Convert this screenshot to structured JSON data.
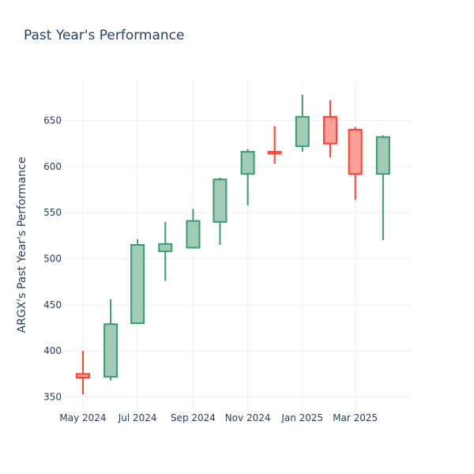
{
  "chart_data": {
    "type": "candlestick",
    "title": "Past Year's Performance",
    "xlabel": "",
    "ylabel": "ARGX's Past Year's Performance",
    "ylim": [
      335,
      695
    ],
    "yticks": [
      350,
      400,
      450,
      500,
      550,
      600,
      650
    ],
    "xticks": [
      {
        "date": "2024-05-01",
        "label": "May 2024"
      },
      {
        "date": "2024-07-01",
        "label": "Jul 2024"
      },
      {
        "date": "2024-09-01",
        "label": "Sep 2024"
      },
      {
        "date": "2024-11-01",
        "label": "Nov 2024"
      },
      {
        "date": "2025-01-01",
        "label": "Jan 2025"
      },
      {
        "date": "2025-03-01",
        "label": "Mar 2025"
      }
    ],
    "grid": true,
    "colors": {
      "increasing": "#3d9970",
      "increasing_fill": "#9fcbb7",
      "decreasing": "#ff4136",
      "decreasing_fill": "#ff9f9a"
    },
    "candles": [
      {
        "date": "2024-05-01",
        "open": 375,
        "high": 400,
        "low": 353,
        "close": 371
      },
      {
        "date": "2024-06-01",
        "open": 372,
        "high": 456,
        "low": 368,
        "close": 429
      },
      {
        "date": "2024-07-01",
        "open": 430,
        "high": 521,
        "low": 429,
        "close": 515
      },
      {
        "date": "2024-08-01",
        "open": 508,
        "high": 540,
        "low": 476,
        "close": 516
      },
      {
        "date": "2024-09-01",
        "open": 512,
        "high": 554,
        "low": 511,
        "close": 541
      },
      {
        "date": "2024-10-01",
        "open": 540,
        "high": 588,
        "low": 515,
        "close": 586
      },
      {
        "date": "2024-11-01",
        "open": 592,
        "high": 619,
        "low": 558,
        "close": 616
      },
      {
        "date": "2024-12-01",
        "open": 616,
        "high": 644,
        "low": 603,
        "close": 614
      },
      {
        "date": "2025-01-01",
        "open": 622,
        "high": 678,
        "low": 616,
        "close": 654
      },
      {
        "date": "2025-02-01",
        "open": 654,
        "high": 672,
        "low": 610,
        "close": 625
      },
      {
        "date": "2025-03-01",
        "open": 640,
        "high": 643,
        "low": 564,
        "close": 592
      },
      {
        "date": "2025-04-01",
        "open": 592,
        "high": 634,
        "low": 520,
        "close": 632
      }
    ]
  }
}
